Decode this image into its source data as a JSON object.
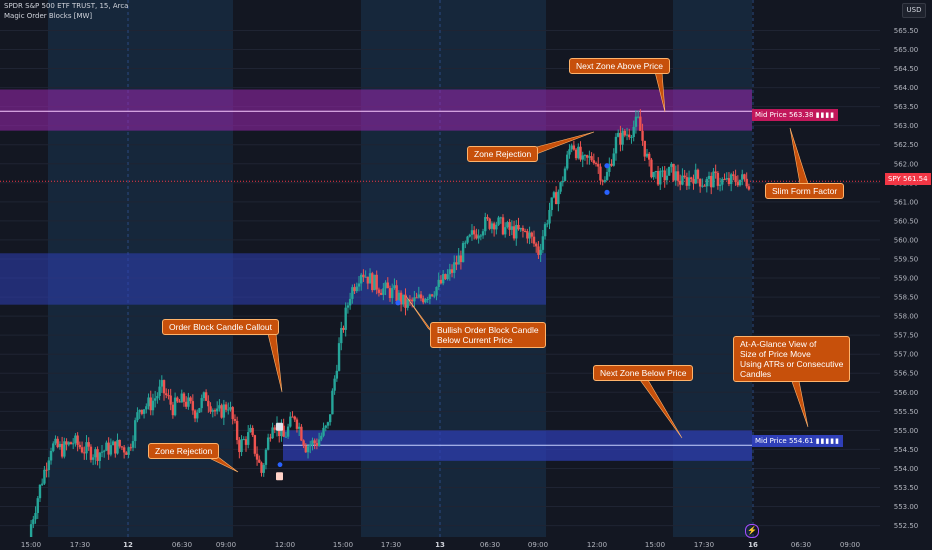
{
  "header": {
    "title": "SPDR S&P 500 ETF TRUST, 15, Arca",
    "indicator": "Magic Order Blocks [MW]",
    "currency": "USD"
  },
  "labels": {
    "next_zone_above": "Next Zone Above Price",
    "zone_rejection_top": "Zone Rejection",
    "slim_form_factor": "Slim Form Factor",
    "order_block_callout": "Order Block Candle Callout",
    "bullish_order_block": "Bullish Order Block Candle\nBelow Current Price",
    "at_a_glance": "At-A-Glance View of\nSize of Price Move\nUsing ATRs or Consecutive\nCandles",
    "next_zone_below": "Next Zone Below Price",
    "zone_rejection_bottom": "Zone Rejection",
    "mid_price_upper": "Mid Price 563.38",
    "mid_price_lower": "Mid Price 554.61",
    "spy_tag": "SPY",
    "spy_price": "561.54"
  },
  "colors": {
    "background": "#131722",
    "session_band": "#1a3550",
    "zone_upper": "#9c27b0",
    "zone_middle": "#2f3fb8",
    "zone_lower": "#2f3fb8",
    "bull_candle": "#26a69a",
    "bear_candle": "#ef5350",
    "callout": "#c7500b"
  },
  "chart_data": {
    "type": "candlestick",
    "y_ticks": [
      "565.50",
      "565.00",
      "564.50",
      "564.00",
      "563.50",
      "563.00",
      "562.50",
      "562.00",
      "561.50",
      "561.00",
      "560.50",
      "560.00",
      "559.50",
      "559.00",
      "558.50",
      "558.00",
      "557.50",
      "557.00",
      "556.50",
      "556.00",
      "555.50",
      "555.00",
      "554.50",
      "554.00",
      "553.50",
      "553.00",
      "552.50"
    ],
    "x_ticks": [
      "15:00",
      "17:30",
      "12",
      "06:30",
      "09:00",
      "12:00",
      "15:00",
      "17:30",
      "13",
      "06:30",
      "09:00",
      "12:00",
      "15:00",
      "17:30",
      "16",
      "06:30",
      "09:00"
    ],
    "ylim": [
      552.2,
      566.3
    ],
    "zones": [
      {
        "name": "upper",
        "low": 562.87,
        "high": 563.95,
        "mid": 563.38
      },
      {
        "name": "middle",
        "low": 558.3,
        "high": 559.65
      },
      {
        "name": "lower",
        "low": 554.2,
        "high": 555.0,
        "mid": 554.61
      }
    ],
    "current_price": 561.54,
    "close_path": [
      552.3,
      553.5,
      554.6,
      554.5,
      554.7,
      554.5,
      554.4,
      554.5,
      554.6,
      554.5,
      555.6,
      555.7,
      556.1,
      555.6,
      555.8,
      555.5,
      555.9,
      555.4,
      555.7,
      554.6,
      554.9,
      553.9,
      555.3,
      554.8,
      555.4,
      554.6,
      554.7,
      555.1,
      557.2,
      558.6,
      559.2,
      558.9,
      558.7,
      558.6,
      558.3,
      558.4,
      558.6,
      558.8,
      559.1,
      559.6,
      560.1,
      560.4,
      560.5,
      560.3,
      560.2,
      560.2,
      559.7,
      560.8,
      561.4,
      562.6,
      562.0,
      562.2,
      561.5,
      562.6,
      562.8,
      563.1,
      561.9,
      561.6,
      561.8,
      561.5,
      561.7,
      561.5,
      561.6,
      561.5,
      561.6,
      561.54
    ]
  }
}
